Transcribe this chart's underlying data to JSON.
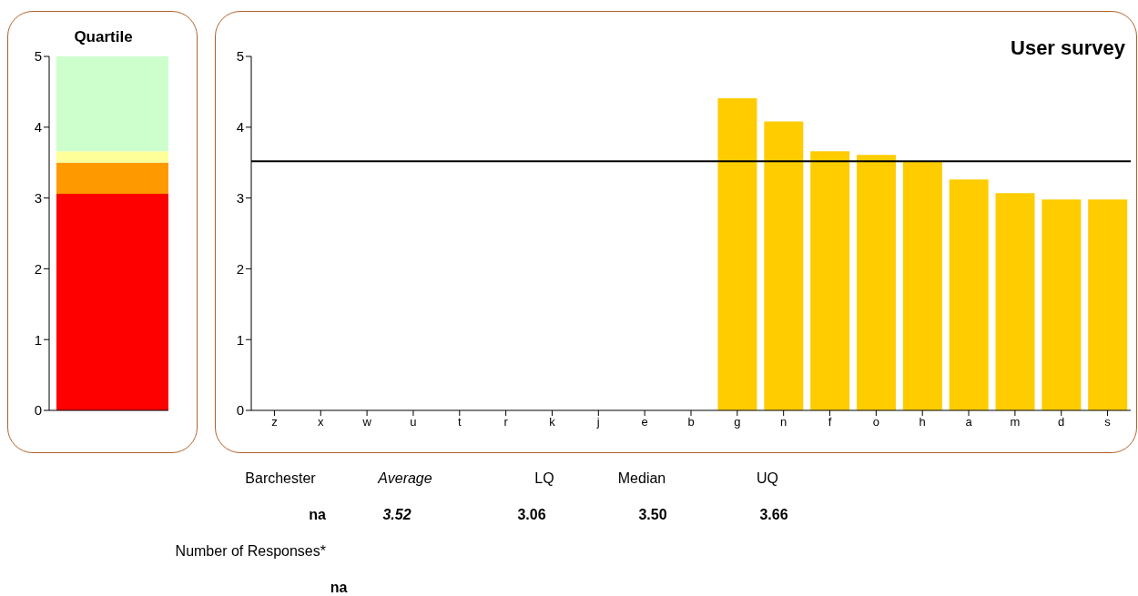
{
  "chart_data": [
    {
      "type": "bar",
      "title": "Quartile",
      "stacked": true,
      "categories": [
        null
      ],
      "tick_labels": "y",
      "grid": false,
      "series": [
        {
          "color": "#ff0000",
          "values": [
            3.06
          ]
        },
        {
          "color": "#ff9900",
          "values": [
            0.44
          ]
        },
        {
          "color": "#ffff99",
          "values": [
            0.16
          ]
        },
        {
          "color": "#ccffcc",
          "values": [
            1.34
          ]
        }
      ],
      "ylim": [
        0,
        5
      ],
      "yticks": [
        0,
        1,
        2,
        3,
        4,
        5
      ]
    },
    {
      "type": "bar",
      "title": "User survey",
      "grid": false,
      "categories": [
        "z",
        "x",
        "w",
        "u",
        "t",
        "r",
        "k",
        "j",
        "e",
        "b",
        "g",
        "n",
        "f",
        "o",
        "h",
        "a",
        "m",
        "d",
        "s"
      ],
      "values": [
        null,
        null,
        null,
        null,
        null,
        null,
        null,
        null,
        null,
        null,
        4.41,
        4.08,
        3.66,
        3.61,
        3.52,
        3.26,
        3.07,
        2.98,
        2.98
      ],
      "color": "#ffcc00",
      "ylim": [
        0,
        5
      ],
      "yticks": [
        0,
        1,
        2,
        3,
        4,
        5
      ],
      "ref_lines": [
        {
          "axis": "y",
          "value": 3.52,
          "color": "#000000"
        }
      ],
      "annotations": [
        "Barchester",
        "Average",
        "LQ",
        "Median",
        "UQ",
        "na",
        "3.52",
        "3.06",
        "3.50",
        "3.66",
        "Number of Responses*",
        "na"
      ]
    }
  ]
}
